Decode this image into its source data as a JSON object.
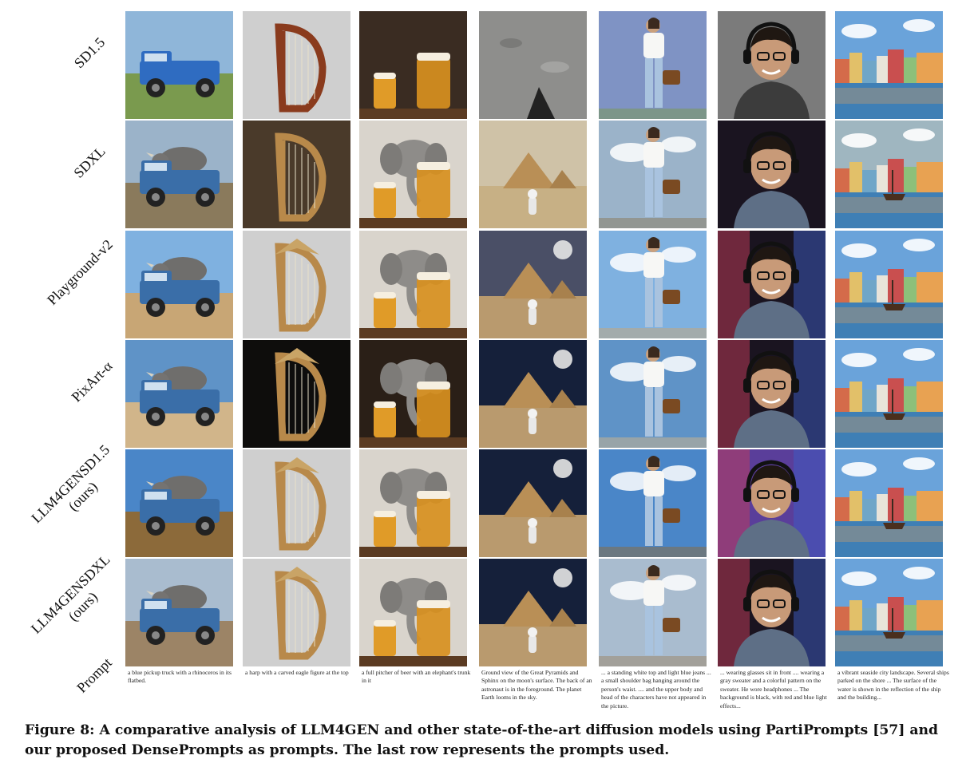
{
  "rows": [
    {
      "label_lines": [
        "SD1.5"
      ]
    },
    {
      "label_lines": [
        "SDXL"
      ]
    },
    {
      "label_lines": [
        "Playground-v2"
      ]
    },
    {
      "label_lines": [
        "PixArt-α"
      ]
    },
    {
      "label_lines": [
        "LLM4GENSD1.5",
        "(ours)"
      ]
    },
    {
      "label_lines": [
        "LLM4GENSDXL",
        "(ours)"
      ]
    },
    {
      "label_lines": [
        "Prompt"
      ]
    }
  ],
  "columns": [
    {
      "subject": "pickup-truck"
    },
    {
      "subject": "harp"
    },
    {
      "subject": "beer-elephant"
    },
    {
      "subject": "moon-pyramids"
    },
    {
      "subject": "woman-bag"
    },
    {
      "subject": "man-headphones"
    },
    {
      "subject": "seaside-city"
    }
  ],
  "prompts": [
    "a blue pickup truck with a rhinoceros in its flatbed.",
    "a harp with a carved eagle figure at the top",
    "a full pitcher of beer with an elephant's trunk in it",
    "Ground view of the Great Pyramids and Sphinx on the moon's surface. The back of an astronaut is in the foreground. The planet Earth looms in the sky.",
    "... a standing white top and light blue jeans ... a small shoulder bag hanging around the person's waist. .... and the upper body and head of the characters have not appeared in the picture.",
    "... wearing glasses sit in front .... wearing a gray sweater and a colorful pattern on the sweater. He wore headphones ... The background is black, with red and blue light effects...",
    "a vibrant seaside city landscape. Several ships parked on the shore ... The surface of the water is shown in the reflection of the ship and the building..."
  ],
  "caption": "Figure 8: A comparative analysis of LLM4GEN and other state-of-the-art diffusion models using PartiPrompts [57] and our proposed DensePrompts as prompts. The last row represents the prompts used."
}
